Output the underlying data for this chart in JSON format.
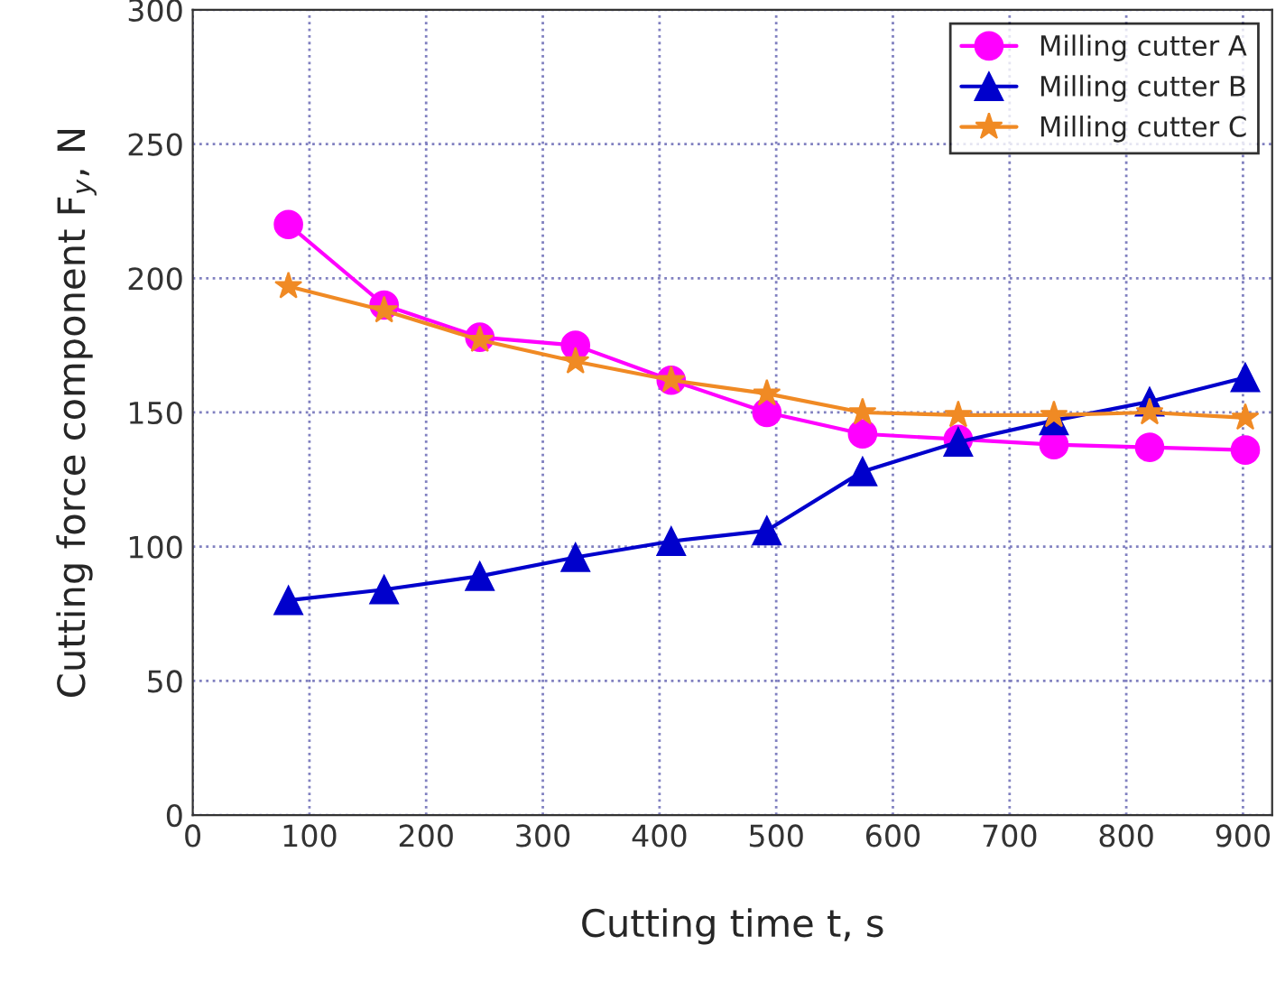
{
  "chart_data": {
    "type": "line",
    "xlabel": "Cutting time t, s",
    "ylabel": "Cutting force component F$_{y}$, N",
    "x": [
      82,
      164,
      246,
      328,
      410,
      492,
      574,
      656,
      738,
      820,
      902
    ],
    "series": [
      {
        "name": "Milling cutter A",
        "color": "#ff00ff",
        "marker": "circle",
        "values": [
          220,
          190,
          178,
          175,
          162,
          150,
          142,
          140,
          138,
          137,
          136
        ]
      },
      {
        "name": "Milling cutter B",
        "color": "#0000cc",
        "marker": "triangle",
        "values": [
          80,
          84,
          89,
          96,
          102,
          106,
          128,
          139,
          147,
          154,
          163
        ]
      },
      {
        "name": "Milling cutter C",
        "color": "#f08a24",
        "marker": "star",
        "values": [
          197,
          188,
          177,
          169,
          162,
          157,
          150,
          149,
          149,
          150,
          148
        ]
      }
    ],
    "xlim": [
      0,
      925
    ],
    "xticks": [
      0,
      100,
      200,
      300,
      400,
      500,
      600,
      700,
      800,
      900
    ],
    "ylim": [
      0,
      300
    ],
    "yticks": [
      0,
      50,
      100,
      150,
      200,
      250,
      300
    ],
    "grid": true,
    "legend": "top right",
    "line_style": "solid"
  }
}
